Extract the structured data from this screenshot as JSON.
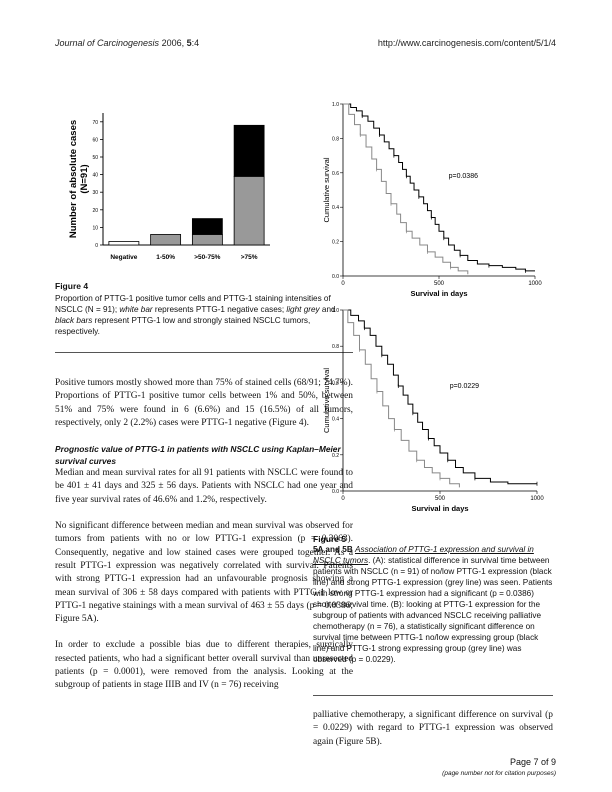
{
  "header": {
    "journal": "Journal of Carcinogenesis",
    "year_volume": "2006, ",
    "volume": "5",
    "article": ":4",
    "url": "http://www.carcinogenesis.com/content/5/1/4"
  },
  "fig4": {
    "title": "Figure 4",
    "caption_a": "Proportion of PTTG-1 positive tumor cells and PTTG-1 staining intensities of NSCLC (N = 91); ",
    "caption_b": "white bar",
    "caption_c": " represents PTTG-1 negative cases; ",
    "caption_d": "light grey",
    "caption_e": " and ",
    "caption_f": "black bars",
    "caption_g": " represent PTTG-1 low and strongly stained NSCLC tumors, respectively."
  },
  "fig5": {
    "title": "Figure 5",
    "label": "5A and 5B ",
    "link": "Association of PTTG-1 expression and survival in NSCLC tumors",
    "caption": ". (A): statistical difference in survival time between patients with NSCLC (n = 91) of no/low PTTG-1 expression (black line) and strong PTTG-1 expression (grey line) was seen. Patients with strong PTTG-1 expression had a significant (p = 0.0386) shorter survival time. (B): looking at PTTG-1 expression for the subgroup of patients with advanced NSCLC receiving palliative chemotherapy (n = 76), a statistically significant difference on survival time between PTTG-1 no/low expressing group (black line) and PTTG-1 strong expressing group (grey line) was observed (p = 0.0229)."
  },
  "body": {
    "para1": "Positive tumors mostly showed more than 75% of stained cells (68/91; 74.7%). Proportions of PTTG-1 positive tumor cells between 1% and 50%, between 51% and 75% were found in 6 (6.6%) and 15 (16.5%) of all tumors, respectively, only 2 (2.2%) cases were PTTG-1 negative (Figure 4).",
    "section_heading": "Prognostic value of PTTG-1 in patients with NSCLC using Kaplan–Meier survival curves",
    "para2": "Median and mean survival rates for all 91 patients with NSCLC were found to be 401 ± 41 days and 325 ± 56 days. Patients with NSCLC had one year and five year survival rates of 46.6% and 1.2%, respectively.",
    "para3": "No significant difference between median and mean survival was observed for tumors from patients with no or low PTTG-1 expression (p = 0.3063). Consequently, negative and low stained cases were grouped together. As a result PTTG-1 expression was negatively correlated with survival. Patients with strong PTTG-1 expression had an unfavourable prognosis showing a mean survival of 306 ± 58 days compared with patients with PTTG-1 low or PTTG-1 negative stainings with a mean survival of 463 ± 55 days (p = 0.0386; Figure 5A).",
    "para4": "In order to exclude a possible bias due to different therapies, surgically resected patients, who had a significant better overall survival than unresected patients (p = 0.0001), were removed from the analysis. Looking at the subgroup of patients in stage IIIB and IV (n = 76) receiving",
    "para5": "palliative chemotherapy, a significant difference on survival (p = 0.0229) with regard to PTTG-1 expression was observed again (Figure 5B)."
  },
  "footer": {
    "page": "Page 7 of 9",
    "note": "(page number not for citation purposes)"
  },
  "chart_data": [
    {
      "type": "bar",
      "stacked": true,
      "categories": [
        "Negative",
        "1-50%",
        ">50-75%",
        ">75%"
      ],
      "series": [
        {
          "name": "white bar",
          "color": "#ffffff",
          "values": [
            2,
            0,
            0,
            0
          ]
        },
        {
          "name": "light grey",
          "color": "#999999",
          "values": [
            0,
            6,
            6,
            39
          ]
        },
        {
          "name": "black bars",
          "color": "#000000",
          "values": [
            0,
            0,
            9,
            29
          ]
        }
      ],
      "ylabel": "Number of absolute cases (N=91)",
      "ylim": [
        0,
        75
      ],
      "yticks": [
        0,
        10,
        20,
        30,
        40,
        50,
        60,
        70
      ]
    },
    {
      "type": "line",
      "step": true,
      "xlabel": "Survival in days",
      "ylabel": "Cumulative survival",
      "xlim": [
        0,
        1000
      ],
      "ylim": [
        0,
        1.0
      ],
      "xticks": [
        0,
        500,
        1000
      ],
      "yticks": [
        0.0,
        0.2,
        0.4,
        0.6,
        0.8,
        1.0
      ],
      "annotation": "p=0.0386",
      "series": [
        {
          "color": "#000000",
          "points": [
            [
              0,
              1.0
            ],
            [
              40,
              0.98
            ],
            [
              70,
              0.96
            ],
            [
              100,
              0.93
            ],
            [
              130,
              0.9
            ],
            [
              160,
              0.86
            ],
            [
              190,
              0.82
            ],
            [
              215,
              0.78
            ],
            [
              240,
              0.74
            ],
            [
              265,
              0.7
            ],
            [
              290,
              0.66
            ],
            [
              310,
              0.62
            ],
            [
              330,
              0.58
            ],
            [
              350,
              0.54
            ],
            [
              370,
              0.5
            ],
            [
              395,
              0.46
            ],
            [
              420,
              0.42
            ],
            [
              440,
              0.38
            ],
            [
              460,
              0.34
            ],
            [
              480,
              0.3
            ],
            [
              500,
              0.26
            ],
            [
              525,
              0.22
            ],
            [
              550,
              0.18
            ],
            [
              580,
              0.15
            ],
            [
              610,
              0.12
            ],
            [
              650,
              0.09
            ],
            [
              700,
              0.07
            ],
            [
              760,
              0.06
            ],
            [
              830,
              0.05
            ],
            [
              900,
              0.04
            ],
            [
              950,
              0.03
            ],
            [
              1000,
              0.03
            ]
          ]
        },
        {
          "color": "#888888",
          "points": [
            [
              0,
              1.0
            ],
            [
              30,
              0.94
            ],
            [
              60,
              0.88
            ],
            [
              90,
              0.82
            ],
            [
              120,
              0.75
            ],
            [
              150,
              0.68
            ],
            [
              175,
              0.62
            ],
            [
              200,
              0.55
            ],
            [
              225,
              0.48
            ],
            [
              250,
              0.42
            ],
            [
              280,
              0.36
            ],
            [
              300,
              0.31
            ],
            [
              330,
              0.26
            ],
            [
              360,
              0.22
            ],
            [
              400,
              0.18
            ],
            [
              440,
              0.14
            ],
            [
              480,
              0.11
            ],
            [
              520,
              0.08
            ],
            [
              560,
              0.05
            ],
            [
              600,
              0.03
            ],
            [
              650,
              0.01
            ]
          ]
        }
      ]
    },
    {
      "type": "line",
      "step": true,
      "xlabel": "Survival in days",
      "ylabel": "Cumulative survival",
      "xlim": [
        0,
        1000
      ],
      "ylim": [
        0,
        1.0
      ],
      "xticks": [
        0,
        500,
        1000
      ],
      "yticks": [
        0.0,
        0.2,
        0.4,
        0.6,
        0.8,
        1.0
      ],
      "annotation": "p=0.0229",
      "series": [
        {
          "color": "#000000",
          "points": [
            [
              0,
              1.0
            ],
            [
              40,
              0.97
            ],
            [
              80,
              0.94
            ],
            [
              110,
              0.9
            ],
            [
              140,
              0.86
            ],
            [
              170,
              0.8
            ],
            [
              200,
              0.75
            ],
            [
              230,
              0.7
            ],
            [
              260,
              0.64
            ],
            [
              285,
              0.58
            ],
            [
              310,
              0.53
            ],
            [
              335,
              0.48
            ],
            [
              360,
              0.43
            ],
            [
              385,
              0.38
            ],
            [
              410,
              0.34
            ],
            [
              440,
              0.29
            ],
            [
              470,
              0.25
            ],
            [
              500,
              0.21
            ],
            [
              540,
              0.17
            ],
            [
              580,
              0.13
            ],
            [
              620,
              0.1
            ],
            [
              680,
              0.07
            ],
            [
              760,
              0.05
            ],
            [
              850,
              0.04
            ],
            [
              1000,
              0.04
            ]
          ]
        },
        {
          "color": "#888888",
          "points": [
            [
              0,
              1.0
            ],
            [
              25,
              0.93
            ],
            [
              55,
              0.86
            ],
            [
              85,
              0.78
            ],
            [
              115,
              0.7
            ],
            [
              145,
              0.62
            ],
            [
              175,
              0.55
            ],
            [
              205,
              0.47
            ],
            [
              235,
              0.4
            ],
            [
              265,
              0.34
            ],
            [
              300,
              0.28
            ],
            [
              340,
              0.22
            ],
            [
              380,
              0.17
            ],
            [
              420,
              0.13
            ],
            [
              460,
              0.1
            ],
            [
              500,
              0.07
            ],
            [
              550,
              0.04
            ],
            [
              600,
              0.02
            ]
          ]
        }
      ]
    }
  ]
}
